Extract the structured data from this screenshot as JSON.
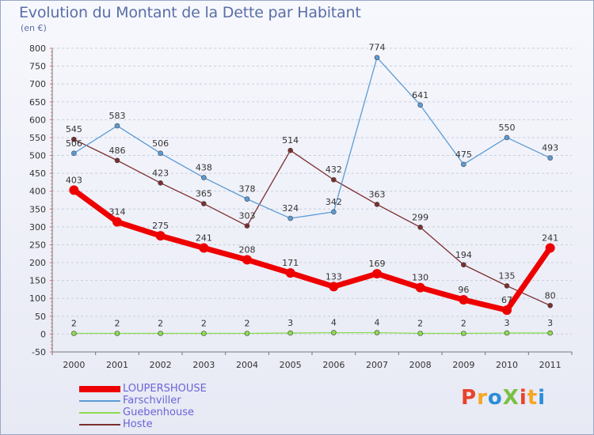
{
  "header": {
    "title": "Evolution du Montant de la Dette par Habitant",
    "subtitle": "(en €)"
  },
  "logo": {
    "text": "ProXiti",
    "colors": [
      "#e8432b",
      "#f5a623",
      "#2a8dd8",
      "#7bc043"
    ]
  },
  "chart_data": {
    "type": "line",
    "title": "Evolution du Montant de la Dette par Habitant",
    "ylabel": "(en €)",
    "xlabel": "",
    "x": [
      "2000",
      "2001",
      "2002",
      "2003",
      "2004",
      "2005",
      "2006",
      "2007",
      "2008",
      "2009",
      "2010",
      "2011"
    ],
    "ylim": [
      -50,
      800
    ],
    "yticks": [
      -50,
      0,
      50,
      100,
      150,
      200,
      250,
      300,
      350,
      400,
      450,
      500,
      550,
      600,
      650,
      700,
      750,
      800
    ],
    "grid": "horizontal dashed",
    "legend_position": "bottom-left",
    "series": [
      {
        "name": "LOUPERSHOUSE",
        "color": "#ee0000",
        "values": [
          403,
          314,
          275,
          241,
          208,
          171,
          133,
          169,
          130,
          96,
          67,
          241
        ]
      },
      {
        "name": "Farschviller",
        "color": "#5b9bd5",
        "values": [
          506,
          583,
          506,
          438,
          378,
          324,
          342,
          774,
          641,
          475,
          550,
          493
        ]
      },
      {
        "name": "Guebenhouse",
        "color": "#8cdb52",
        "values": [
          2,
          2,
          2,
          2,
          2,
          3,
          4,
          4,
          2,
          2,
          3,
          3
        ]
      },
      {
        "name": "Hoste",
        "color": "#7b2f2f",
        "values": [
          545,
          486,
          423,
          365,
          303,
          514,
          432,
          363,
          299,
          194,
          135,
          80
        ]
      }
    ]
  }
}
